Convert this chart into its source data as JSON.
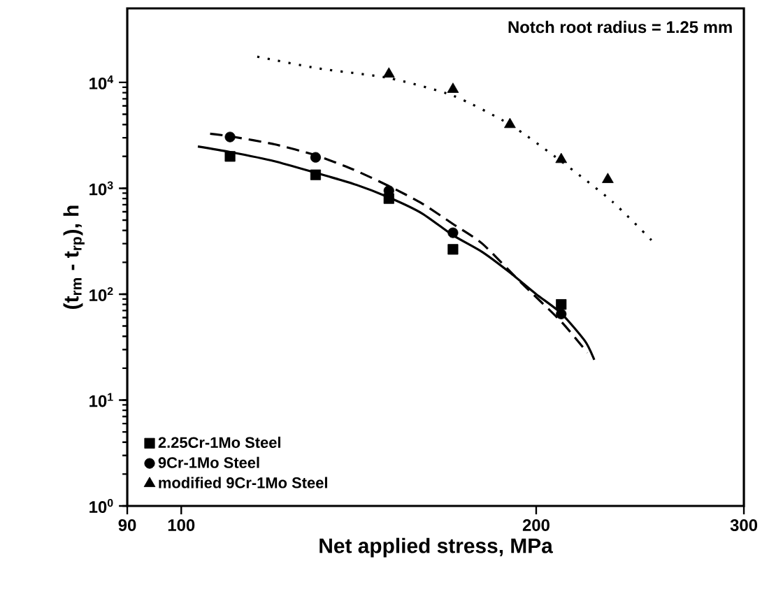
{
  "chart_data": {
    "type": "scatter",
    "xlabel": "Net applied stress, MPa",
    "ylabel": "(t$_{rm}$ - t$_{rp}$), h",
    "annotations": [
      "Notch root radius = 1.25 mm"
    ],
    "log": "xy",
    "xlim": [
      90,
      300
    ],
    "ylim": [
      1,
      50000
    ],
    "xticks": [
      90,
      100,
      200,
      300
    ],
    "yticks": [
      {
        "value": 1,
        "label": "10$^{0}$"
      },
      {
        "value": 10,
        "label": "10$^{1}$"
      },
      {
        "value": 100,
        "label": "10$^{2}$"
      },
      {
        "value": 1000,
        "label": "10$^{3}$"
      },
      {
        "value": 10000,
        "label": "10$^{4}$"
      }
    ],
    "legend": "bottom left",
    "grid": false,
    "series": [
      {
        "name": "2.25Cr-1Mo Steel",
        "marker": "square",
        "color": "#000000",
        "x": [
          110,
          130,
          150,
          170,
          210
        ],
        "values": [
          2000,
          1340,
          800,
          265,
          80
        ]
      },
      {
        "name": "9Cr-1Mo Steel",
        "marker": "circle",
        "color": "#000000",
        "x": [
          110,
          130,
          150,
          170,
          210
        ],
        "values": [
          3050,
          1960,
          950,
          380,
          65
        ]
      },
      {
        "name": "modified 9Cr-1Mo Steel",
        "marker": "triangle",
        "color": "#000000",
        "x": [
          150,
          170,
          190,
          210,
          230
        ],
        "values": [
          12000,
          8600,
          4000,
          1870,
          1210
        ]
      },
      {
        "type": "line",
        "line_style": "solid",
        "color": "#000000",
        "x": [
          103.3,
          110,
          120,
          130,
          140,
          150,
          160,
          170,
          180,
          190,
          200,
          210,
          220,
          224
        ],
        "values": [
          2480,
          2200,
          1800,
          1400,
          1100,
          820,
          580,
          360,
          250,
          160,
          100,
          66,
          36,
          24
        ]
      },
      {
        "type": "line",
        "line_style": "dashed",
        "color": "#000000",
        "x": [
          105.8,
          110,
          120,
          130,
          140,
          150,
          160,
          170,
          180,
          194,
          210,
          221
        ],
        "values": [
          3270,
          3100,
          2600,
          2050,
          1500,
          1050,
          720,
          460,
          300,
          130,
          55,
          28
        ]
      },
      {
        "type": "line",
        "line_style": "dotted",
        "color": "#000000",
        "x": [
          116,
          131,
          150,
          170,
          190,
          210,
          232,
          251
        ],
        "values": [
          17500,
          13500,
          11000,
          7500,
          4000,
          1800,
          750,
          316
        ]
      }
    ]
  }
}
